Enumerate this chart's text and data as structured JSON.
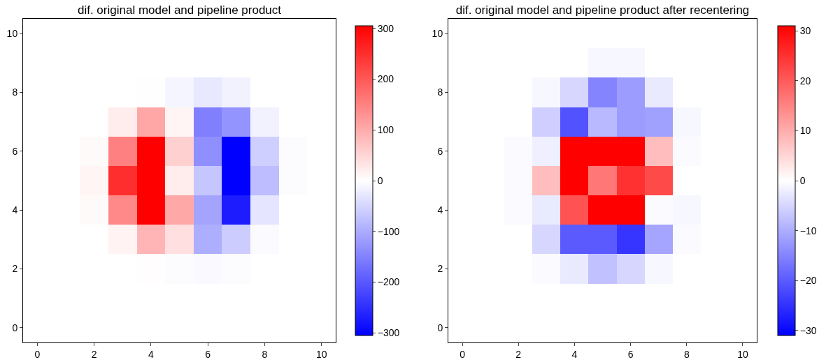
{
  "chart_data": [
    {
      "type": "heatmap",
      "title": "dif. original model and pipeline product",
      "categories": [
        "0",
        null,
        "2",
        null,
        "4",
        null,
        "6",
        null,
        "8",
        null,
        "10"
      ],
      "y_categories": [
        "10",
        null,
        "8",
        null,
        "6",
        null,
        "4",
        null,
        "2",
        null,
        "0"
      ],
      "cells": [
        [
          0,
          0,
          0,
          0,
          0,
          0,
          0,
          0,
          0,
          0,
          0
        ],
        [
          0,
          0,
          0,
          0,
          0,
          0,
          0,
          0,
          0,
          0,
          0
        ],
        [
          0,
          0,
          0,
          0,
          1,
          -12,
          -28,
          -15,
          0,
          0,
          0
        ],
        [
          0,
          0,
          0,
          23,
          107,
          12,
          -152,
          -128,
          -15,
          0,
          0
        ],
        [
          0,
          0,
          6,
          152,
          305,
          56,
          -134,
          -305,
          -57,
          -4,
          0
        ],
        [
          0,
          0,
          12,
          250,
          305,
          21,
          -68,
          -305,
          -79,
          -4,
          0
        ],
        [
          0,
          0,
          6,
          142,
          305,
          104,
          -109,
          -272,
          -31,
          0,
          0
        ],
        [
          0,
          0,
          0,
          14,
          88,
          38,
          -97,
          -61,
          -5,
          0,
          0
        ],
        [
          0,
          0,
          0,
          0,
          2,
          -4,
          -7,
          -4,
          0,
          0,
          0
        ],
        [
          0,
          0,
          0,
          0,
          0,
          0,
          0,
          0,
          0,
          0,
          0
        ],
        [
          0,
          0,
          0,
          0,
          0,
          0,
          0,
          0,
          0,
          0,
          0
        ]
      ],
      "clim": [
        -305,
        305
      ],
      "cticks": [
        -300,
        -200,
        -100,
        0,
        100,
        200,
        300
      ]
    },
    {
      "type": "heatmap",
      "title": "dif. original model and pipeline product after recentering",
      "categories": [
        "0",
        null,
        "2",
        null,
        "4",
        null,
        "6",
        null,
        "8",
        null,
        "10"
      ],
      "y_categories": [
        "10",
        null,
        "8",
        null,
        "6",
        null,
        "4",
        null,
        "2",
        null,
        "0"
      ],
      "cells": [
        [
          0,
          0,
          0,
          0,
          0,
          0,
          0,
          0,
          0,
          0,
          0
        ],
        [
          0,
          0,
          0,
          0,
          0,
          -1,
          -1,
          0,
          0,
          0,
          0
        ],
        [
          0,
          0,
          0,
          -1,
          -5,
          -15,
          -12,
          -2.5,
          0,
          0,
          0
        ],
        [
          0,
          0,
          0,
          -6,
          -21,
          -8.5,
          -12,
          -11.5,
          -1,
          0,
          0
        ],
        [
          0,
          0,
          -0.5,
          -2,
          31,
          31,
          31,
          8,
          -0.5,
          0,
          0
        ],
        [
          0,
          0,
          -0.5,
          8,
          31,
          16.5,
          25,
          22,
          0,
          0,
          0
        ],
        [
          0,
          0,
          -0.5,
          -2.5,
          21,
          31,
          31,
          -0.5,
          -1,
          0,
          0
        ],
        [
          0,
          0,
          0,
          -5,
          -20,
          -20,
          -24.5,
          -11,
          -0.5,
          0,
          0
        ],
        [
          0,
          0,
          0,
          -0.5,
          -2.5,
          -7.5,
          -5,
          -1,
          0,
          0,
          0
        ],
        [
          0,
          0,
          0,
          0,
          0,
          0,
          0,
          0,
          0,
          0,
          0
        ],
        [
          0,
          0,
          0,
          0,
          0,
          0,
          0,
          0,
          0,
          0,
          0
        ]
      ],
      "clim": [
        -31,
        31
      ],
      "cticks": [
        -30,
        -20,
        -10,
        0,
        10,
        20,
        30
      ]
    }
  ]
}
